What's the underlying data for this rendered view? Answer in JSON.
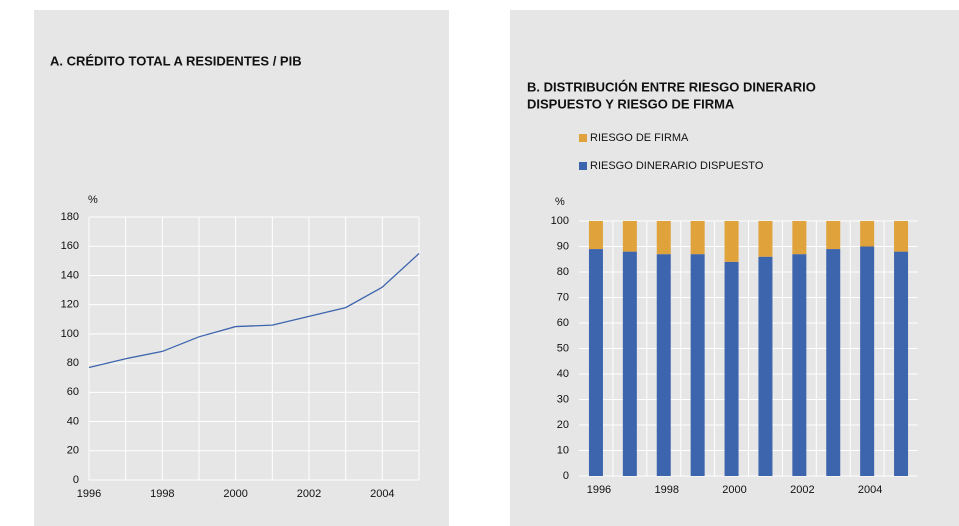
{
  "chart_data": [
    {
      "type": "line",
      "title": [
        "A. CRÉDITO TOTAL A RESIDENTES / PIB"
      ],
      "y_label": "%",
      "x": [
        1996,
        1997,
        1998,
        1999,
        2000,
        2001,
        2002,
        2003,
        2004,
        2005
      ],
      "series": [
        {
          "name": "Crédito total",
          "color": "#3d65ad",
          "values": [
            77,
            83,
            88,
            98,
            105,
            106,
            112,
            118,
            132,
            155
          ]
        }
      ],
      "xlim": [
        1996,
        2005
      ],
      "xticks": [
        1996,
        1998,
        2000,
        2002,
        2004
      ],
      "ylim": [
        0,
        180
      ],
      "yticks": [
        0,
        20,
        40,
        60,
        80,
        100,
        120,
        140,
        160,
        180
      ],
      "grid": true
    },
    {
      "type": "bar",
      "stacked": true,
      "title": [
        "B. DISTRIBUCIÓN ENTRE RIESGO DINERARIO",
        "DISPUESTO Y RIESGO DE FIRMA"
      ],
      "y_label": "%",
      "categories": [
        "1996",
        null,
        "1998",
        null,
        "2000",
        null,
        "2002",
        null,
        "2004",
        null
      ],
      "series": [
        {
          "name": "RIESGO DINERARIO DISPUESTO",
          "color": "#3d65ad",
          "values": [
            89,
            88,
            87,
            87,
            84,
            86,
            87,
            89,
            90,
            88
          ]
        },
        {
          "name": "RIESGO DE FIRMA",
          "color": "#e0a23a",
          "values": [
            11,
            12,
            13,
            13,
            16,
            14,
            13,
            11,
            10,
            12
          ]
        }
      ],
      "ylim": [
        0,
        100
      ],
      "yticks": [
        0,
        10,
        20,
        30,
        40,
        50,
        60,
        70,
        80,
        90,
        100
      ],
      "grid": true,
      "legend": "top-left"
    }
  ]
}
